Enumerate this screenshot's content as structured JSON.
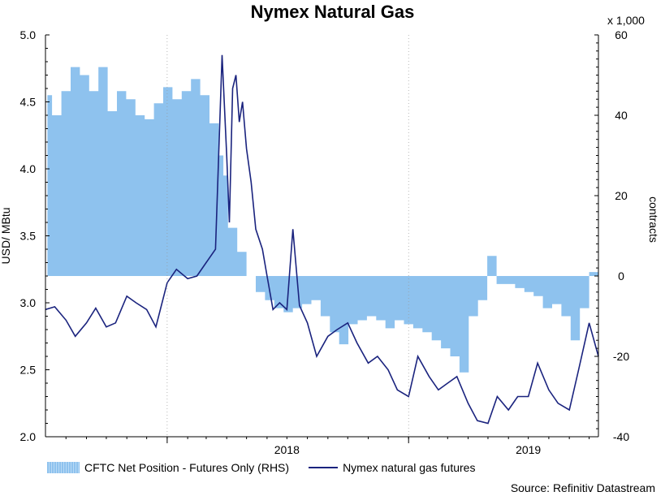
{
  "chart_data": {
    "type": "line",
    "title": "Nymex Natural Gas",
    "source": "Source: Refinitiv Datastream",
    "x_tick_labels": [
      "2018",
      "2019"
    ],
    "x_range": [
      "2017-07-01",
      "2019-10-15"
    ],
    "y_left": {
      "label": "USD/ MBtu",
      "ylim": [
        2.0,
        5.0
      ],
      "ticks": [
        "2.0",
        "2.5",
        "3.0",
        "3.5",
        "4.0",
        "4.5",
        "5.0"
      ]
    },
    "y_right": {
      "label": "contracts",
      "unit": "x 1,000",
      "ylim": [
        -40,
        60
      ],
      "ticks": [
        "-40",
        "-20",
        "0",
        "20",
        "40",
        "60"
      ]
    },
    "grid": false,
    "legend_position": "bottom",
    "series": [
      {
        "name": "CFTC Net Position - Futures Only (RHS)",
        "type": "area",
        "color": "#8ec2ee",
        "axis": "right",
        "x": [
          "2017-07-04",
          "2017-07-11",
          "2017-07-25",
          "2017-08-08",
          "2017-08-22",
          "2017-09-05",
          "2017-09-19",
          "2017-10-03",
          "2017-10-17",
          "2017-10-31",
          "2017-11-14",
          "2017-11-28",
          "2017-12-12",
          "2017-12-26",
          "2018-01-09",
          "2018-01-23",
          "2018-02-06",
          "2018-02-20",
          "2018-03-06",
          "2018-03-20",
          "2018-03-27",
          "2018-04-03",
          "2018-04-17",
          "2018-05-01",
          "2018-05-15",
          "2018-05-29",
          "2018-06-12",
          "2018-06-26",
          "2018-07-10",
          "2018-07-24",
          "2018-08-07",
          "2018-08-21",
          "2018-09-04",
          "2018-09-18",
          "2018-10-02",
          "2018-10-16",
          "2018-10-30",
          "2018-11-13",
          "2018-11-27",
          "2018-12-11",
          "2018-12-25",
          "2019-01-08",
          "2019-01-22",
          "2019-02-05",
          "2019-02-19",
          "2019-03-05",
          "2019-03-19",
          "2019-04-02",
          "2019-04-16",
          "2019-04-30",
          "2019-05-14",
          "2019-05-28",
          "2019-06-11",
          "2019-06-25",
          "2019-07-09",
          "2019-07-23",
          "2019-08-06",
          "2019-08-20",
          "2019-09-03",
          "2019-09-17",
          "2019-10-01",
          "2019-10-15"
        ],
        "values": [
          45,
          40,
          46,
          52,
          50,
          46,
          52,
          41,
          46,
          44,
          40,
          39,
          43,
          47,
          44,
          46,
          49,
          45,
          38,
          30,
          25,
          12,
          6,
          0,
          -4,
          -6,
          -8,
          -9,
          -8,
          -7,
          -6,
          -10,
          -14,
          -17,
          -12,
          -11,
          -10,
          -11,
          -13,
          -11,
          -12,
          -13,
          -14,
          -16,
          -18,
          -20,
          -24,
          -10,
          -6,
          5,
          -2,
          -2,
          -3,
          -4,
          -5,
          -8,
          -7,
          -10,
          -16,
          -8,
          1,
          -2
        ],
        "ylim": [
          -40,
          60
        ]
      },
      {
        "name": "Nymex natural gas futures",
        "type": "line",
        "color": "#1a237e",
        "axis": "left",
        "x": [
          "2017-07-01",
          "2017-07-15",
          "2017-08-01",
          "2017-08-15",
          "2017-09-01",
          "2017-09-15",
          "2017-10-01",
          "2017-10-15",
          "2017-11-01",
          "2017-11-15",
          "2017-12-01",
          "2017-12-15",
          "2018-01-01",
          "2018-01-15",
          "2018-02-01",
          "2018-02-15",
          "2018-03-01",
          "2018-03-15",
          "2018-03-25",
          "2018-04-01",
          "2018-04-05",
          "2018-04-10",
          "2018-04-15",
          "2018-04-20",
          "2018-04-25",
          "2018-05-01",
          "2018-05-08",
          "2018-05-15",
          "2018-05-25",
          "2018-06-01",
          "2018-06-10",
          "2018-06-20",
          "2018-07-01",
          "2018-07-10",
          "2018-07-20",
          "2018-08-01",
          "2018-08-15",
          "2018-09-01",
          "2018-09-15",
          "2018-10-01",
          "2018-10-15",
          "2018-11-01",
          "2018-11-15",
          "2018-12-01",
          "2018-12-15",
          "2019-01-01",
          "2019-01-15",
          "2019-02-01",
          "2019-02-15",
          "2019-03-01",
          "2019-03-15",
          "2019-04-01",
          "2019-04-15",
          "2019-05-01",
          "2019-05-15",
          "2019-06-01",
          "2019-06-15",
          "2019-07-01",
          "2019-07-15",
          "2019-08-01",
          "2019-08-15",
          "2019-09-01",
          "2019-09-15",
          "2019-10-01",
          "2019-10-15"
        ],
        "values": [
          2.95,
          2.97,
          2.87,
          2.75,
          2.85,
          2.96,
          2.82,
          2.85,
          3.05,
          3.0,
          2.95,
          2.82,
          3.15,
          3.25,
          3.18,
          3.2,
          3.3,
          3.4,
          4.85,
          4.1,
          3.6,
          4.6,
          4.7,
          4.35,
          4.5,
          4.15,
          3.9,
          3.55,
          3.4,
          3.2,
          2.95,
          3.0,
          2.95,
          3.55,
          2.98,
          2.85,
          2.6,
          2.75,
          2.8,
          2.85,
          2.7,
          2.55,
          2.6,
          2.5,
          2.35,
          2.3,
          2.6,
          2.45,
          2.35,
          2.4,
          2.45,
          2.25,
          2.12,
          2.1,
          2.3,
          2.2,
          2.3,
          2.3,
          2.55,
          2.35,
          2.25,
          2.2,
          2.5,
          2.85,
          2.6
        ],
        "ylim": [
          2.0,
          5.0
        ]
      }
    ]
  }
}
